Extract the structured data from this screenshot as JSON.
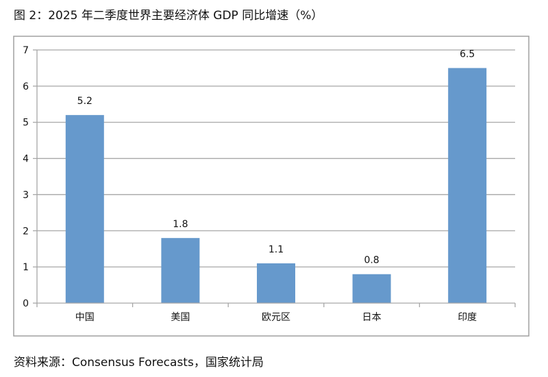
{
  "title": "图 2：2025 年二季度世界主要经济体 GDP 同比增速（%）",
  "source": "资料来源：Consensus Forecasts，国家统计局",
  "chart_data": {
    "type": "bar",
    "title": "图 2：2025 年二季度世界主要经济体 GDP 同比增速（%）",
    "categories": [
      "中国",
      "美国",
      "欧元区",
      "日本",
      "印度"
    ],
    "values": [
      5.2,
      1.8,
      1.1,
      0.8,
      6.5
    ],
    "data_labels": [
      "5.2",
      "1.8",
      "1.1",
      "0.8",
      "6.5"
    ],
    "ylim": [
      0,
      7
    ],
    "yticks": [
      0,
      1,
      2,
      3,
      4,
      5,
      6,
      7
    ],
    "grid": true,
    "legend": "none",
    "bar_color": "#6699CC"
  }
}
